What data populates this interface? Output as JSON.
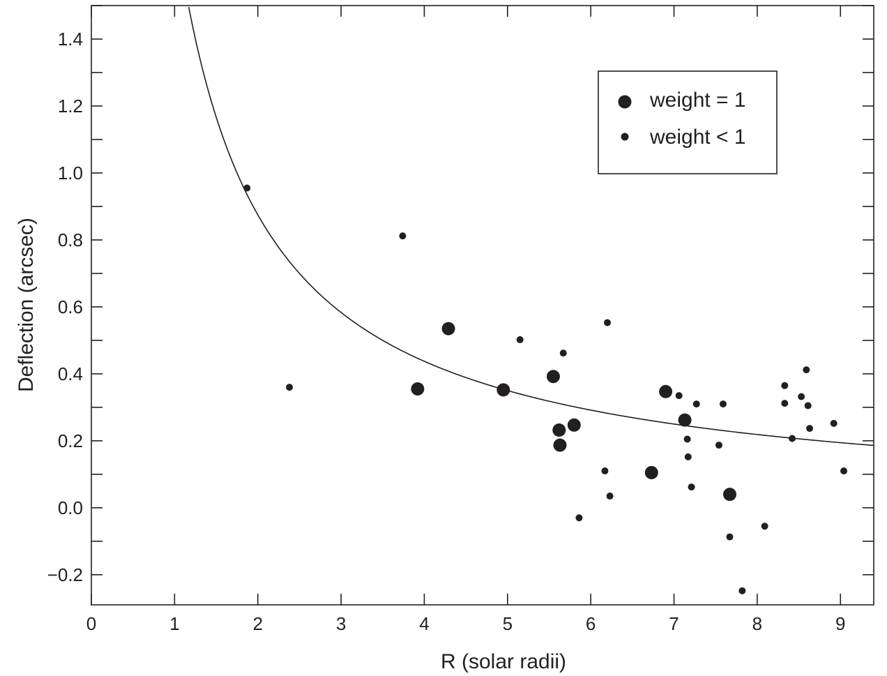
{
  "chart_data": {
    "type": "scatter",
    "title": "",
    "xlabel": "R (solar radii)",
    "ylabel": "Deflection (arcsec)",
    "xlim": [
      0,
      9.4
    ],
    "ylim": [
      -0.29,
      1.5
    ],
    "x_ticks": [
      0,
      1,
      2,
      3,
      4,
      5,
      6,
      7,
      8,
      9
    ],
    "x_tick_labels": [
      "0",
      "1",
      "2",
      "3",
      "4",
      "5",
      "6",
      "7",
      "8",
      "9"
    ],
    "y_ticks": [
      -0.2,
      0.0,
      0.2,
      0.4,
      0.6,
      0.8,
      1.0,
      1.2,
      1.4
    ],
    "y_tick_labels": [
      "−0.2",
      "0.0",
      "0.2",
      "0.4",
      "0.6",
      "0.8",
      "1.0",
      "1.2",
      "1.4"
    ],
    "grid": false,
    "legend_position": "top-right",
    "color": "#231f20",
    "curve": {
      "formula": "1.75 / R",
      "x_range": [
        1.17,
        9.4
      ]
    },
    "series": [
      {
        "name": "weight = 1",
        "marker": "large-dot",
        "points": [
          {
            "x": 3.92,
            "y": 0.355
          },
          {
            "x": 4.29,
            "y": 0.535
          },
          {
            "x": 4.95,
            "y": 0.352
          },
          {
            "x": 5.55,
            "y": 0.392
          },
          {
            "x": 5.62,
            "y": 0.232
          },
          {
            "x": 5.63,
            "y": 0.187
          },
          {
            "x": 5.8,
            "y": 0.247
          },
          {
            "x": 6.73,
            "y": 0.105
          },
          {
            "x": 6.9,
            "y": 0.347
          },
          {
            "x": 7.13,
            "y": 0.262
          },
          {
            "x": 7.67,
            "y": 0.04
          }
        ]
      },
      {
        "name": "weight < 1",
        "marker": "small-dot",
        "points": [
          {
            "x": 1.87,
            "y": 0.955
          },
          {
            "x": 2.38,
            "y": 0.36
          },
          {
            "x": 3.74,
            "y": 0.812
          },
          {
            "x": 5.15,
            "y": 0.502
          },
          {
            "x": 5.67,
            "y": 0.462
          },
          {
            "x": 5.86,
            "y": -0.03
          },
          {
            "x": 6.17,
            "y": 0.11
          },
          {
            "x": 6.2,
            "y": 0.553
          },
          {
            "x": 6.23,
            "y": 0.035
          },
          {
            "x": 7.06,
            "y": 0.335
          },
          {
            "x": 7.16,
            "y": 0.205
          },
          {
            "x": 7.17,
            "y": 0.152
          },
          {
            "x": 7.21,
            "y": 0.062
          },
          {
            "x": 7.27,
            "y": 0.31
          },
          {
            "x": 7.54,
            "y": 0.187
          },
          {
            "x": 7.59,
            "y": 0.31
          },
          {
            "x": 7.67,
            "y": -0.087
          },
          {
            "x": 7.82,
            "y": -0.248
          },
          {
            "x": 8.09,
            "y": -0.055
          },
          {
            "x": 8.33,
            "y": 0.365
          },
          {
            "x": 8.33,
            "y": 0.312
          },
          {
            "x": 8.42,
            "y": 0.207
          },
          {
            "x": 8.53,
            "y": 0.332
          },
          {
            "x": 8.59,
            "y": 0.412
          },
          {
            "x": 8.61,
            "y": 0.305
          },
          {
            "x": 8.63,
            "y": 0.237
          },
          {
            "x": 8.92,
            "y": 0.252
          },
          {
            "x": 9.04,
            "y": 0.11
          }
        ]
      }
    ]
  }
}
